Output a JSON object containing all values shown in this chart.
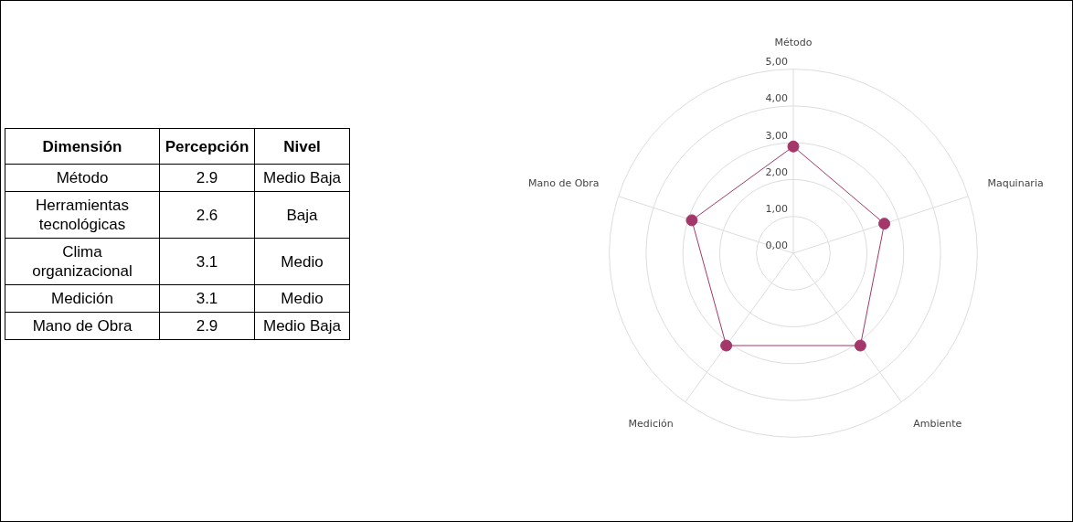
{
  "chart_data": [
    {
      "type": "other",
      "annotations": [
        "Dimensión",
        "Percepción",
        "Nivel",
        "Método",
        "2.9",
        "Medio Baja",
        "Herramientas tecnológicas",
        "2.6",
        "Baja",
        "Clima organizacional",
        "3.1",
        "Medio",
        "Medición",
        "3.1",
        "Medio",
        "Mano de Obra",
        "2.9",
        "Medio Baja"
      ]
    },
    {
      "type": "radar",
      "categories": [
        "Método",
        "Maquinaria",
        "Ambiente",
        "Medición",
        "Mano de Obra"
      ],
      "series": [
        {
          "color": "#a3376a",
          "values": [
            2.9,
            2.6,
            3.1,
            3.1,
            2.9
          ]
        }
      ],
      "ylim": [
        0,
        5
      ],
      "yticks": [
        {
          "value": 0,
          "label": "0,00"
        },
        {
          "value": 1,
          "label": "1,00"
        },
        {
          "value": 2,
          "label": "2,00"
        },
        {
          "value": 3,
          "label": "3,00"
        },
        {
          "value": 4,
          "label": "4,00"
        },
        {
          "value": 5,
          "label": "5,00"
        }
      ],
      "grid": true,
      "marker": "circle",
      "line_style": "solid"
    }
  ]
}
